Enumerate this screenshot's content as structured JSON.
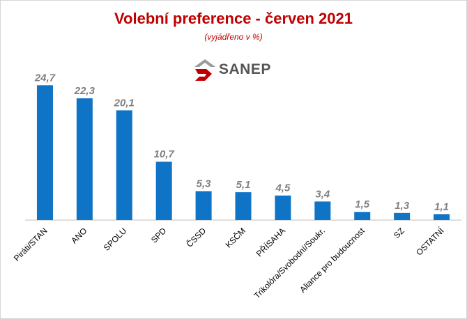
{
  "title": "Volební preference - červen 2021",
  "subtitle": "(vyjádřeno v %)",
  "logo": {
    "text": "SANEP",
    "icon": "sanep-logo-mark"
  },
  "colors": {
    "bar": "#0f73c6",
    "title": "#c00000",
    "value_label": "#7f7f7f",
    "axis": "#bfbfbf"
  },
  "chart_data": {
    "type": "bar",
    "title": "Volební preference - červen 2021",
    "subtitle": "(vyjádřeno v %)",
    "categories": [
      "Piráti/STAN",
      "ANO",
      "SPOLU",
      "SPD",
      "ČSSD",
      "KSČM",
      "PŘÍSAHA",
      "Trikolóra/Svobodní/Soukr.",
      "Aliance pro budoucnost",
      "SZ",
      "OSTATNÍ"
    ],
    "values": [
      24.7,
      22.3,
      20.1,
      10.7,
      5.3,
      5.1,
      4.5,
      3.4,
      1.5,
      1.3,
      1.1
    ],
    "value_labels": [
      "24,7",
      "22,3",
      "20,1",
      "10,7",
      "5,3",
      "5,1",
      "4,5",
      "3,4",
      "1,5",
      "1,3",
      "1,1"
    ],
    "ylim": [
      0,
      25
    ],
    "grid": false,
    "legend": "none"
  }
}
